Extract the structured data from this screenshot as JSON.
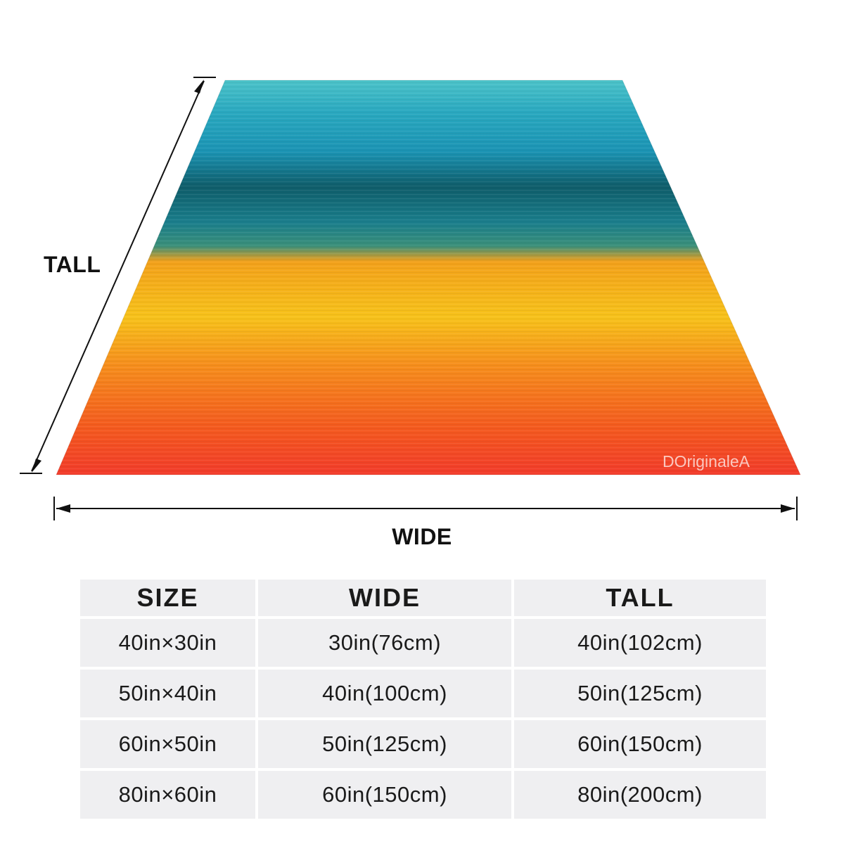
{
  "dimensions": {
    "tall_label": "TALL",
    "wide_label": "WIDE"
  },
  "watermark": "DOriginaleA",
  "blanket": {
    "colors": [
      "#4cc3c9",
      "#1b94b4",
      "#0f5d6a",
      "#1a7e8c",
      "#f3a11a",
      "#f7c21a",
      "#f68f1c",
      "#f45a1e",
      "#f23b2a"
    ]
  },
  "size_table": {
    "headers": [
      "SIZE",
      "WIDE",
      "TALL"
    ],
    "rows": [
      [
        "40in×30in",
        "30in(76cm)",
        "40in(102cm)"
      ],
      [
        "50in×40in",
        "40in(100cm)",
        "50in(125cm)"
      ],
      [
        "60in×50in",
        "50in(125cm)",
        "60in(150cm)"
      ],
      [
        "80in×60in",
        "60in(150cm)",
        "80in(200cm)"
      ]
    ]
  }
}
